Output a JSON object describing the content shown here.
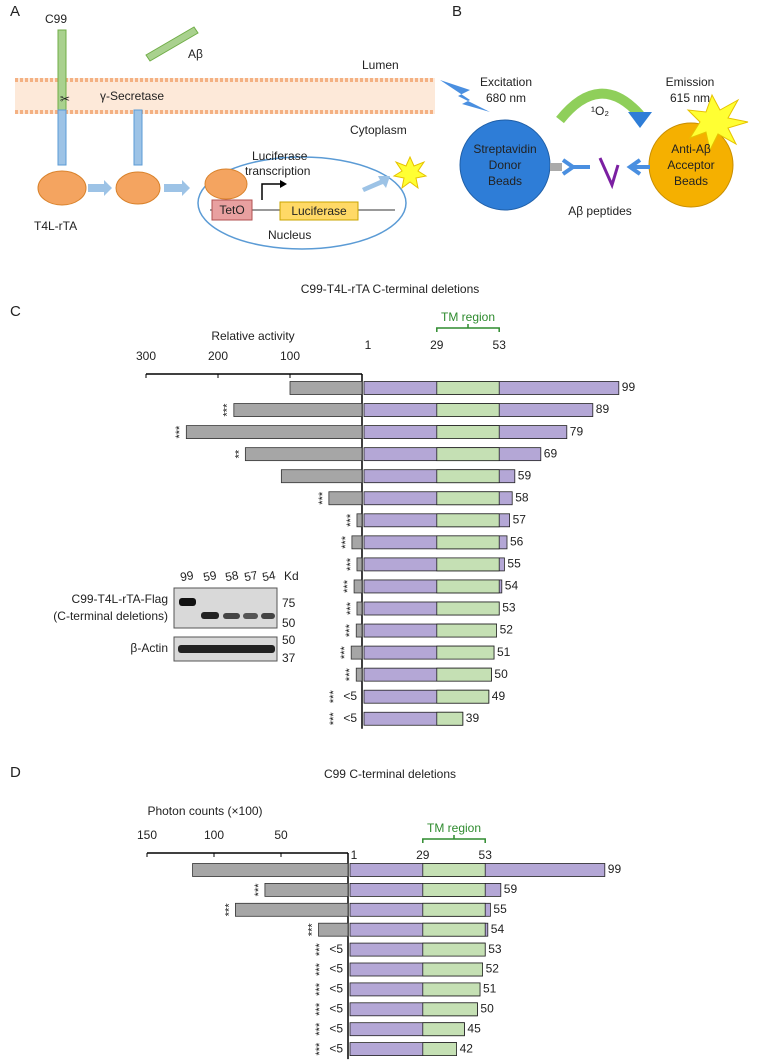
{
  "panel_a": {
    "letter": "A",
    "c99": "C99",
    "abeta": "Aβ",
    "lumen": "Lumen",
    "secretase": "γ-Secretase",
    "cytoplasm": "Cytoplasm",
    "fusion": "T4L-rTA",
    "transcription": [
      "Luciferase",
      "transcription"
    ],
    "teto": "TetO",
    "luciferase": "Luciferase",
    "nucleus": "Nucleus"
  },
  "panel_b": {
    "letter": "B",
    "excitation": [
      "Excitation",
      "680 nm"
    ],
    "emission": [
      "Emission",
      "615 nm"
    ],
    "oxygen": "¹O₂",
    "donor": [
      "Streptavidin",
      "Donor",
      "Beads"
    ],
    "acceptor": [
      "Anti-Aβ",
      "Acceptor",
      "Beads"
    ],
    "peptides": "Aβ peptides"
  },
  "blot": {
    "lanes": [
      "99",
      "59",
      "58",
      "57",
      "54"
    ],
    "unit": "Kd",
    "protein_labels": [
      "C99-T4L-rTA-Flag",
      "(C-terminal deletions)",
      "β-Actin"
    ],
    "markers": [
      "75",
      "50",
      "50",
      "37"
    ]
  },
  "chart_data": [
    {
      "type": "bar",
      "orientation": "horizontal",
      "x_reversed": true,
      "panel": "C",
      "title": "C99-T4L-rTA C-terminal deletions",
      "x_label": "Relative activity",
      "xlim": [
        0,
        300
      ],
      "xticks": [
        300,
        200,
        100
      ],
      "categories": [
        99,
        89,
        79,
        69,
        59,
        58,
        57,
        56,
        55,
        54,
        53,
        52,
        51,
        50,
        49,
        39
      ],
      "values": [
        100,
        178,
        244,
        162,
        112,
        46,
        7,
        14,
        7,
        11,
        7,
        8,
        15,
        8,
        null,
        null
      ],
      "value_labels": [
        null,
        null,
        null,
        null,
        null,
        null,
        null,
        null,
        null,
        null,
        null,
        null,
        null,
        null,
        "<5",
        "<5"
      ],
      "significance": [
        null,
        "***",
        "***",
        "**",
        null,
        "***",
        "***",
        "***",
        "***",
        "***",
        "***",
        "***",
        "***",
        "***",
        "***",
        "***"
      ],
      "color": "#a6a6a6",
      "construct_start": 1,
      "tm_region": [
        29,
        53
      ],
      "tm_label": "TM region",
      "construct_color": "#b4a7d6",
      "tm_color": "#c5e0b4"
    },
    {
      "type": "bar",
      "orientation": "horizontal",
      "x_reversed": true,
      "panel": "D",
      "title": "C99 C-terminal deletions",
      "x_label": "Photon counts (×100)",
      "xlim": [
        0,
        150
      ],
      "xticks": [
        150,
        100,
        50
      ],
      "categories": [
        99,
        59,
        55,
        54,
        53,
        52,
        51,
        50,
        45,
        42
      ],
      "values": [
        116,
        62,
        84,
        22,
        null,
        null,
        null,
        null,
        null,
        null
      ],
      "value_labels": [
        null,
        null,
        null,
        null,
        "<5",
        "<5",
        "<5",
        "<5",
        "<5",
        "<5"
      ],
      "significance": [
        null,
        "***",
        "***",
        "***",
        "***",
        "***",
        "***",
        "***",
        "***",
        "***"
      ],
      "color": "#a6a6a6",
      "construct_start": 1,
      "tm_region": [
        29,
        53
      ],
      "tm_label": "TM region",
      "construct_color": "#b4a7d6",
      "tm_color": "#c5e0b4"
    }
  ]
}
